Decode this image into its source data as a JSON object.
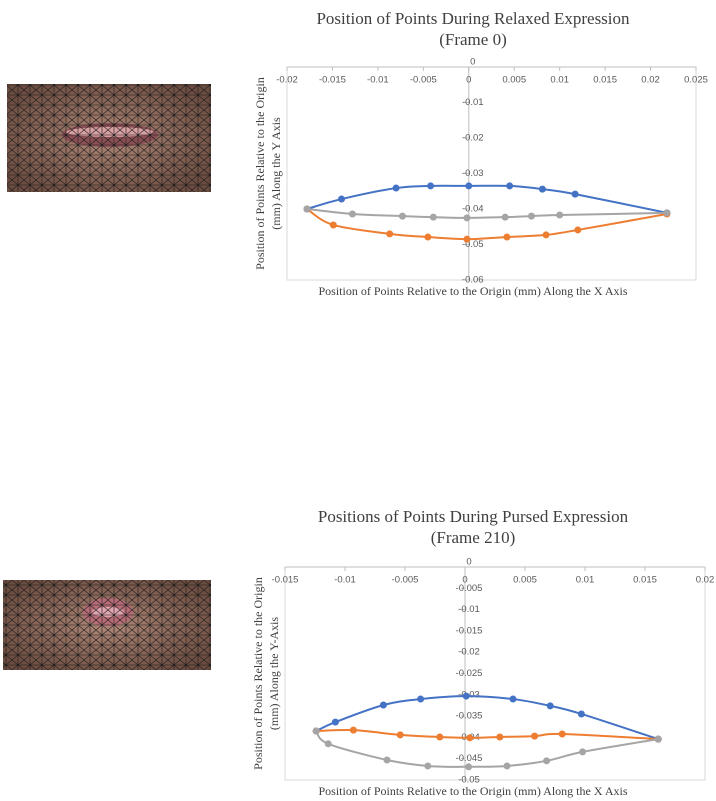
{
  "chart_data": [
    {
      "type": "scatter",
      "title": "Position of Points During Relaxed Expression",
      "subtitle": "(Frame 0)",
      "x_label": "Position of Points Relative to the Origin (mm) Along the X Axis",
      "y_label": [
        "Position of Points Relative to the Origin",
        "(mm) Along the Y Axis"
      ],
      "xlim": [
        -0.02,
        0.025
      ],
      "xticks": [
        -0.02,
        -0.015,
        -0.01,
        -0.005,
        0,
        0.005,
        0.01,
        0.015,
        0.02,
        0.025
      ],
      "ylim": [
        -0.06,
        0
      ],
      "yticks": [
        0,
        -0.01,
        -0.02,
        -0.03,
        -0.04,
        -0.05,
        -0.06
      ],
      "series": [
        {
          "color": "#4472c4",
          "x": [
            -0.0178,
            -0.014,
            -0.008,
            -0.0042,
            0,
            0.0045,
            0.0081,
            0.0117,
            0.0218
          ],
          "values": [
            -0.04,
            -0.0372,
            -0.0341,
            -0.0335,
            -0.0335,
            -0.0335,
            -0.0344,
            -0.0358,
            -0.0411
          ]
        },
        {
          "color": "#ed7d31",
          "x": [
            -0.0178,
            -0.0149,
            -0.0087,
            -0.0045,
            -0.0002,
            0.0042,
            0.0085,
            0.012,
            0.0218
          ],
          "values": [
            -0.04,
            -0.0445,
            -0.047,
            -0.0479,
            -0.0485,
            -0.0479,
            -0.0473,
            -0.0459,
            -0.0414
          ]
        },
        {
          "color": "#a5a5a5",
          "x": [
            -0.0178,
            -0.0128,
            -0.0073,
            -0.0039,
            -0.0002,
            0.004,
            0.0069,
            0.01,
            0.0218
          ],
          "values": [
            -0.04,
            -0.0414,
            -0.042,
            -0.0423,
            -0.0425,
            -0.0423,
            -0.042,
            -0.0417,
            -0.0411
          ]
        }
      ]
    },
    {
      "type": "scatter",
      "title": "Positions of Points During Pursed Expression",
      "subtitle": "(Frame 210)",
      "x_label": "Position of Points Relative to the Origin (mm) Along the X Axis",
      "y_label": [
        "Position of Points Relative to the Origin",
        "(mm) Along the Y-Axis"
      ],
      "xlim": [
        -0.015,
        0.02
      ],
      "xticks": [
        -0.015,
        -0.01,
        -0.005,
        0,
        0.005,
        0.01,
        0.015,
        0.02
      ],
      "ylim": [
        -0.05,
        0
      ],
      "yticks": [
        0,
        -0.005,
        -0.01,
        -0.015,
        -0.02,
        -0.025,
        -0.03,
        -0.035,
        -0.04,
        -0.045,
        -0.05
      ],
      "series": [
        {
          "color": "#4472c4",
          "x": [
            -0.0124,
            -0.0108,
            -0.0068,
            -0.0037,
            0.0001,
            0.004,
            0.0071,
            0.0097,
            0.0161
          ],
          "values": [
            -0.0385,
            -0.0364,
            -0.0324,
            -0.031,
            -0.0303,
            -0.031,
            -0.0326,
            -0.0345,
            -0.0404
          ]
        },
        {
          "color": "#ed7d31",
          "x": [
            -0.0124,
            -0.0093,
            -0.0054,
            -0.0021,
            0.0004,
            0.0029,
            0.0058,
            0.0081,
            0.0161
          ],
          "values": [
            -0.0385,
            -0.0383,
            -0.0394,
            -0.0399,
            -0.0401,
            -0.0399,
            -0.0397,
            -0.0392,
            -0.0404
          ]
        },
        {
          "color": "#a5a5a5",
          "x": [
            -0.0124,
            -0.0114,
            -0.0065,
            -0.0031,
            0.0003,
            0.0035,
            0.0068,
            0.0098,
            0.0161
          ],
          "values": [
            -0.0385,
            -0.0415,
            -0.0453,
            -0.0467,
            -0.0469,
            -0.0467,
            -0.0455,
            -0.0434,
            -0.0404
          ]
        }
      ]
    }
  ]
}
